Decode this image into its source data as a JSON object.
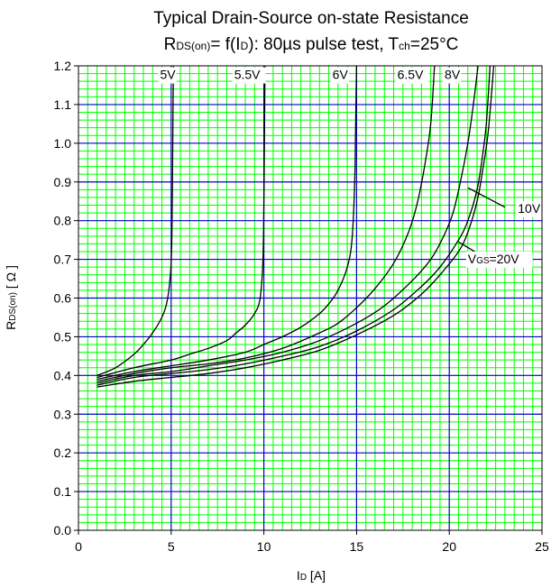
{
  "title": {
    "line1": "Typical Drain-Source on-state Resistance",
    "line2_parts": [
      "R",
      "DS(on)",
      "= f(I",
      "D",
      "): 80µs pulse test, T",
      "ch",
      "=25°C"
    ]
  },
  "colors": {
    "minor_grid": "#00ff00",
    "major_grid": "#0000cc",
    "curve": "#000000",
    "frame": "#000000"
  },
  "chart_data": {
    "type": "line",
    "title": "Typical Drain-Source on-state Resistance",
    "subtitle": "RDS(on)= f(ID): 80µs pulse test, Tch=25°C",
    "xlabel": {
      "main": "I",
      "sub": "D",
      "tail": " [A]"
    },
    "ylabel": {
      "main": "R",
      "sub": "DS(on)",
      "tail": " [ Ω ]"
    },
    "xlim": [
      0,
      25
    ],
    "ylim": [
      0,
      1.2
    ],
    "x_ticks": [
      0,
      5,
      10,
      15,
      20,
      25
    ],
    "x_tick_labels": [
      "0",
      "5",
      "10",
      "15",
      "20",
      "25"
    ],
    "y_ticks": [
      0,
      0.1,
      0.2,
      0.3,
      0.4,
      0.5,
      0.6,
      0.7,
      0.8,
      0.9,
      1.0,
      1.1,
      1.2
    ],
    "y_tick_labels": [
      "0.0",
      "0.1",
      "0.2",
      "0.3",
      "0.4",
      "0.5",
      "0.6",
      "0.7",
      "0.8",
      "0.9",
      "1.0",
      "1.1",
      "1.2"
    ],
    "grid": true,
    "minor_grid_x_step": 0.5,
    "minor_grid_y_step": 0.02,
    "series": [
      {
        "name": "5V",
        "label": {
          "text": "5V",
          "x": 4.4,
          "y": 1.166
        },
        "points": [
          [
            1.0,
            0.4
          ],
          [
            2.0,
            0.42
          ],
          [
            3.0,
            0.455
          ],
          [
            3.5,
            0.48
          ],
          [
            4.0,
            0.51
          ],
          [
            4.5,
            0.55
          ],
          [
            4.75,
            0.585
          ],
          [
            4.9,
            0.63
          ],
          [
            5.0,
            0.69
          ],
          [
            5.05,
            0.8
          ],
          [
            5.08,
            0.95
          ],
          [
            5.1,
            1.1
          ],
          [
            5.12,
            1.2
          ]
        ]
      },
      {
        "name": "5.5V",
        "label": {
          "text": "5.5V",
          "x": 8.4,
          "y": 1.166
        },
        "points": [
          [
            1.0,
            0.395
          ],
          [
            3.0,
            0.42
          ],
          [
            5.0,
            0.44
          ],
          [
            6.0,
            0.455
          ],
          [
            7.0,
            0.47
          ],
          [
            8.0,
            0.49
          ],
          [
            8.5,
            0.51
          ],
          [
            9.0,
            0.53
          ],
          [
            9.5,
            0.56
          ],
          [
            9.8,
            0.6
          ],
          [
            9.95,
            0.7
          ],
          [
            10.0,
            0.85
          ],
          [
            10.03,
            1.0
          ],
          [
            10.06,
            1.2
          ]
        ]
      },
      {
        "name": "6V",
        "label": {
          "text": "6V",
          "x": 13.7,
          "y": 1.166
        },
        "points": [
          [
            1.0,
            0.39
          ],
          [
            3.0,
            0.41
          ],
          [
            5.0,
            0.425
          ],
          [
            7.0,
            0.44
          ],
          [
            9.0,
            0.46
          ],
          [
            10.0,
            0.48
          ],
          [
            11.0,
            0.5
          ],
          [
            12.0,
            0.525
          ],
          [
            13.0,
            0.56
          ],
          [
            13.5,
            0.585
          ],
          [
            14.0,
            0.62
          ],
          [
            14.5,
            0.68
          ],
          [
            14.75,
            0.75
          ],
          [
            14.9,
            0.9
          ],
          [
            14.95,
            1.05
          ],
          [
            15.0,
            1.2
          ]
        ]
      },
      {
        "name": "6.5V",
        "label": {
          "text": "6.5V",
          "x": 17.2,
          "y": 1.166
        },
        "points": [
          [
            1.0,
            0.385
          ],
          [
            3.0,
            0.405
          ],
          [
            5.0,
            0.42
          ],
          [
            7.0,
            0.43
          ],
          [
            9.0,
            0.445
          ],
          [
            11.0,
            0.47
          ],
          [
            13.0,
            0.51
          ],
          [
            14.0,
            0.535
          ],
          [
            15.0,
            0.575
          ],
          [
            16.0,
            0.625
          ],
          [
            17.0,
            0.69
          ],
          [
            17.8,
            0.77
          ],
          [
            18.3,
            0.85
          ],
          [
            18.7,
            0.95
          ],
          [
            19.0,
            1.05
          ],
          [
            19.2,
            1.2
          ]
        ]
      },
      {
        "name": "8V",
        "label": {
          "text": "8V",
          "x": 19.75,
          "y": 1.166
        },
        "points": [
          [
            1.0,
            0.38
          ],
          [
            3.0,
            0.4
          ],
          [
            5.0,
            0.41
          ],
          [
            7.0,
            0.425
          ],
          [
            9.0,
            0.44
          ],
          [
            11.0,
            0.46
          ],
          [
            13.0,
            0.49
          ],
          [
            15.0,
            0.535
          ],
          [
            16.5,
            0.58
          ],
          [
            18.0,
            0.645
          ],
          [
            19.0,
            0.7
          ],
          [
            19.7,
            0.76
          ],
          [
            20.2,
            0.82
          ],
          [
            20.6,
            0.9
          ],
          [
            21.0,
            1.0
          ],
          [
            21.3,
            1.1
          ],
          [
            21.55,
            1.2
          ]
        ]
      },
      {
        "name": "10V",
        "label": {
          "text": "10V",
          "x": 23.7,
          "y": 0.82
        },
        "pointer": [
          [
            23.0,
            0.835
          ],
          [
            21.0,
            0.885
          ]
        ],
        "points": [
          [
            1.0,
            0.375
          ],
          [
            3.0,
            0.395
          ],
          [
            5.0,
            0.405
          ],
          [
            7.0,
            0.415
          ],
          [
            9.0,
            0.43
          ],
          [
            11.0,
            0.45
          ],
          [
            13.0,
            0.475
          ],
          [
            15.0,
            0.515
          ],
          [
            17.0,
            0.57
          ],
          [
            18.5,
            0.63
          ],
          [
            19.5,
            0.68
          ],
          [
            20.5,
            0.75
          ],
          [
            21.0,
            0.8
          ],
          [
            21.5,
            0.88
          ],
          [
            21.8,
            0.97
          ],
          [
            22.0,
            1.05
          ],
          [
            22.2,
            1.2
          ]
        ]
      },
      {
        "name": "VGS=20V",
        "label": {
          "text_parts": [
            "V",
            "GS",
            "=20V"
          ],
          "x": 21.0,
          "y": 0.69
        },
        "pointer": [
          [
            21.9,
            0.705
          ],
          [
            20.5,
            0.745
          ]
        ],
        "points": [
          [
            1.0,
            0.37
          ],
          [
            3.0,
            0.385
          ],
          [
            5.0,
            0.395
          ],
          [
            7.0,
            0.405
          ],
          [
            9.0,
            0.42
          ],
          [
            11.0,
            0.44
          ],
          [
            13.0,
            0.465
          ],
          [
            15.0,
            0.505
          ],
          [
            17.0,
            0.555
          ],
          [
            18.5,
            0.61
          ],
          [
            19.5,
            0.66
          ],
          [
            20.5,
            0.72
          ],
          [
            21.0,
            0.77
          ],
          [
            21.5,
            0.85
          ],
          [
            21.8,
            0.93
          ],
          [
            22.1,
            1.03
          ],
          [
            22.4,
            1.2
          ]
        ]
      }
    ]
  }
}
